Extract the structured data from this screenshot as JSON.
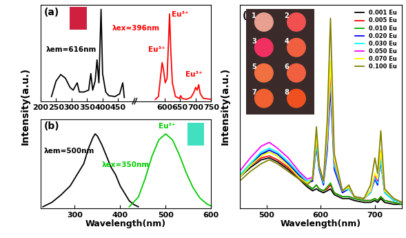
{
  "chart_data": [
    {
      "type": "line",
      "title": "(a)",
      "tick_labels": "x",
      "xlim": [
        200,
        750
      ],
      "xticks": [
        200,
        250,
        300,
        350,
        400,
        450,
        600,
        650,
        700,
        750
      ],
      "ylim": [
        0,
        1.05
      ],
      "annotations": [
        {
          "text": "λem=616nm",
          "color": "#000000"
        },
        {
          "text": "λex=396nm",
          "color": "#ff0000"
        },
        {
          "text": "Eu³⁺",
          "color": "#ff0000"
        },
        {
          "text": "Eu³⁺",
          "color": "#ff0000"
        },
        {
          "text": "Eu³⁺",
          "color": "#ff0000"
        }
      ],
      "series": [
        {
          "color": "#000000",
          "x": [
            235,
            250,
            265,
            280,
            295,
            305,
            318,
            325,
            340,
            355,
            362,
            368,
            376,
            382,
            388,
            395,
            400,
            410,
            420,
            440,
            455,
            465,
            470
          ],
          "values": [
            0.05,
            0.22,
            0.29,
            0.25,
            0.15,
            0.12,
            0.2,
            0.1,
            0.1,
            0.12,
            0.3,
            0.12,
            0.22,
            0.45,
            0.2,
            1.0,
            0.3,
            0.1,
            0.06,
            0.05,
            0.08,
            0.2,
            0.04
          ]
        },
        {
          "color": "#ff0000",
          "x": [
            570,
            580,
            588,
            592,
            596,
            602,
            608,
            612,
            616,
            620,
            625,
            635,
            648,
            652,
            656,
            670,
            685,
            695,
            700,
            705,
            710,
            715,
            725,
            750
          ],
          "values": [
            0.02,
            0.05,
            0.3,
            0.42,
            0.35,
            0.2,
            0.25,
            0.6,
            0.95,
            0.55,
            0.2,
            0.05,
            0.03,
            0.06,
            0.03,
            0.02,
            0.04,
            0.1,
            0.15,
            0.12,
            0.18,
            0.08,
            0.03,
            0.02
          ]
        }
      ]
    },
    {
      "type": "line",
      "title": "(b)",
      "tick_labels": "x",
      "xlabel": "Wavelength(nm)",
      "ylabel": "Intensity(a.u.)",
      "xlim": [
        225,
        600
      ],
      "xticks": [
        300,
        400,
        500,
        600
      ],
      "ylim": [
        0,
        1.2
      ],
      "annotations": [
        {
          "text": "λem=500nm",
          "color": "#000000"
        },
        {
          "text": "λex=350nm",
          "color": "#00cc00"
        },
        {
          "text": "Eu²⁺",
          "color": "#00cc00"
        }
      ],
      "series": [
        {
          "color": "#000000",
          "x": [
            230,
            250,
            270,
            290,
            310,
            320,
            330,
            340,
            345,
            350,
            360,
            370,
            380,
            390,
            400,
            410,
            420,
            430,
            440
          ],
          "values": [
            0.02,
            0.08,
            0.18,
            0.3,
            0.5,
            0.6,
            0.8,
            0.95,
            1.0,
            0.97,
            0.85,
            0.7,
            0.55,
            0.45,
            0.3,
            0.2,
            0.1,
            0.05,
            0.02
          ]
        },
        {
          "color": "#00cc00",
          "x": [
            420,
            440,
            455,
            470,
            485,
            500,
            515,
            530,
            545,
            560,
            575,
            590,
            600
          ],
          "values": [
            0.02,
            0.15,
            0.4,
            0.7,
            0.92,
            1.0,
            0.92,
            0.72,
            0.48,
            0.28,
            0.14,
            0.06,
            0.03
          ]
        }
      ]
    },
    {
      "type": "line",
      "title": "(c)",
      "tick_labels": "x",
      "xlabel": "Wavelength(nm)",
      "ylabel": "Intensity(a.u.)",
      "xlim": [
        450,
        750
      ],
      "xticks": [
        500,
        600,
        700
      ],
      "ylim": [
        0,
        1.05
      ],
      "legend": "upper right",
      "inset_labels": [
        "1",
        "2",
        "3",
        "4",
        "5",
        "6",
        "7",
        "8"
      ],
      "x": [
        450,
        470,
        490,
        505,
        520,
        540,
        560,
        575,
        585,
        592,
        597,
        605,
        612,
        618,
        625,
        640,
        652,
        662,
        680,
        692,
        700,
        705,
        711,
        718,
        735,
        750
      ],
      "series": [
        {
          "name": "0.001 Eu",
          "color": "#000000",
          "values": [
            0.16,
            0.21,
            0.25,
            0.26,
            0.24,
            0.2,
            0.15,
            0.11,
            0.09,
            0.1,
            0.09,
            0.08,
            0.09,
            0.1,
            0.07,
            0.05,
            0.05,
            0.04,
            0.03,
            0.03,
            0.04,
            0.03,
            0.05,
            0.03,
            0.02,
            0.02
          ]
        },
        {
          "name": "0.005 Eu",
          "color": "#ff0000",
          "values": [
            0.17,
            0.22,
            0.26,
            0.27,
            0.25,
            0.21,
            0.16,
            0.12,
            0.1,
            0.12,
            0.1,
            0.09,
            0.1,
            0.12,
            0.08,
            0.06,
            0.06,
            0.05,
            0.04,
            0.04,
            0.05,
            0.04,
            0.06,
            0.04,
            0.03,
            0.02
          ]
        },
        {
          "name": "0.010 Eu",
          "color": "#00aa00",
          "values": [
            0.17,
            0.23,
            0.28,
            0.29,
            0.27,
            0.22,
            0.17,
            0.12,
            0.1,
            0.12,
            0.1,
            0.09,
            0.11,
            0.13,
            0.08,
            0.06,
            0.06,
            0.05,
            0.04,
            0.04,
            0.05,
            0.04,
            0.06,
            0.04,
            0.03,
            0.02
          ]
        },
        {
          "name": "0.020 Eu",
          "color": "#0000ff",
          "values": [
            0.16,
            0.22,
            0.28,
            0.3,
            0.28,
            0.23,
            0.17,
            0.13,
            0.14,
            0.32,
            0.2,
            0.12,
            0.3,
            0.62,
            0.2,
            0.08,
            0.1,
            0.06,
            0.05,
            0.08,
            0.15,
            0.12,
            0.24,
            0.08,
            0.04,
            0.03
          ]
        },
        {
          "name": "0.030 Eu",
          "color": "#00ffff",
          "values": [
            0.17,
            0.23,
            0.29,
            0.31,
            0.29,
            0.24,
            0.18,
            0.14,
            0.15,
            0.33,
            0.21,
            0.13,
            0.33,
            0.68,
            0.22,
            0.09,
            0.1,
            0.06,
            0.05,
            0.08,
            0.16,
            0.13,
            0.25,
            0.08,
            0.04,
            0.03
          ]
        },
        {
          "name": "0.050 Eu",
          "color": "#ff00ff",
          "values": [
            0.19,
            0.26,
            0.32,
            0.34,
            0.31,
            0.26,
            0.19,
            0.15,
            0.16,
            0.37,
            0.22,
            0.14,
            0.36,
            0.72,
            0.24,
            0.09,
            0.11,
            0.06,
            0.05,
            0.09,
            0.17,
            0.14,
            0.3,
            0.09,
            0.05,
            0.03
          ]
        },
        {
          "name": "0.070 Eu",
          "color": "#ffff00",
          "values": [
            0.16,
            0.22,
            0.27,
            0.29,
            0.27,
            0.22,
            0.16,
            0.13,
            0.15,
            0.37,
            0.22,
            0.14,
            0.38,
            0.76,
            0.25,
            0.09,
            0.11,
            0.06,
            0.05,
            0.09,
            0.18,
            0.15,
            0.3,
            0.09,
            0.05,
            0.03
          ]
        },
        {
          "name": "0.100 Eu",
          "color": "#808000",
          "values": [
            0.14,
            0.19,
            0.23,
            0.25,
            0.23,
            0.19,
            0.15,
            0.12,
            0.15,
            0.42,
            0.22,
            0.14,
            0.45,
            0.98,
            0.28,
            0.09,
            0.12,
            0.06,
            0.05,
            0.12,
            0.26,
            0.18,
            0.4,
            0.1,
            0.05,
            0.03
          ]
        }
      ]
    }
  ]
}
